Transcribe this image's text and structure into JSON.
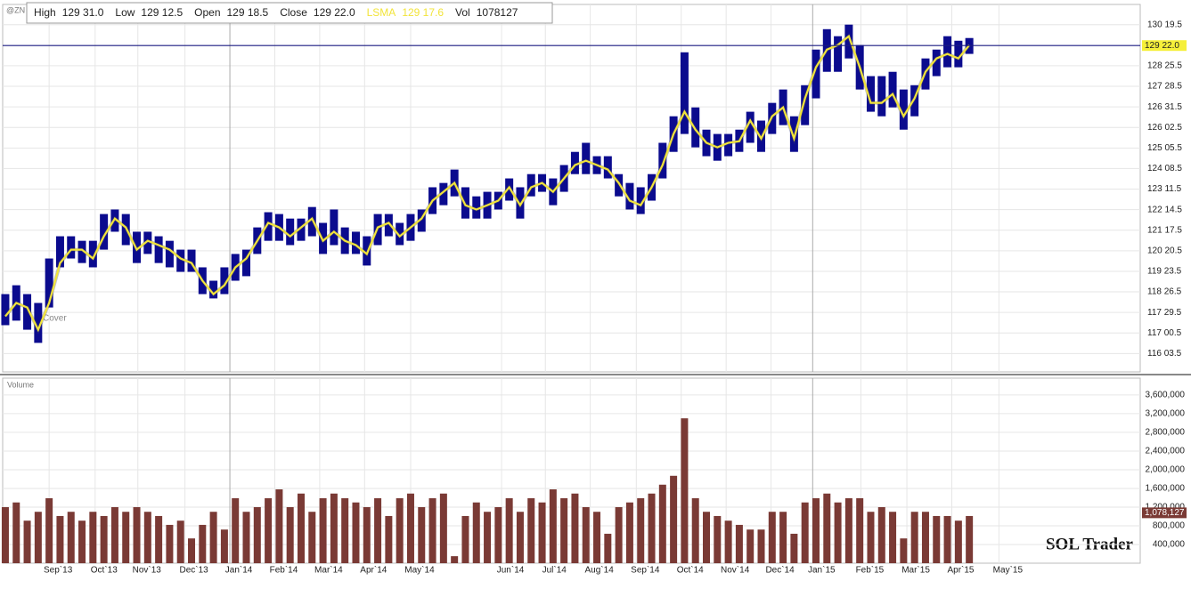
{
  "chart_data": {
    "type": "ohlc",
    "symbol": "@ZN",
    "header": [
      {
        "name": "High",
        "value": "129 31.0"
      },
      {
        "name": "Low",
        "value": "129 12.5"
      },
      {
        "name": "Open",
        "value": "129 18.5"
      },
      {
        "name": "Close",
        "value": "129 22.0"
      },
      {
        "name": "LSMA",
        "value": "129 17.6"
      },
      {
        "name": "Vol",
        "value": "1078127"
      }
    ],
    "xlim": [
      -0.24,
      103.6
    ],
    "xticks": [
      {
        "value": 4,
        "label": "Sep`13"
      },
      {
        "value": 8.2,
        "label": "Oct`13"
      },
      {
        "value": 12.1,
        "label": "Nov`13"
      },
      {
        "value": 16.4,
        "label": "Dec`13"
      },
      {
        "value": 20.5,
        "label": "Jan`14"
      },
      {
        "value": 24.6,
        "label": "Feb`14"
      },
      {
        "value": 28.7,
        "label": "Mar`14"
      },
      {
        "value": 32.8,
        "label": "Apr`14"
      },
      {
        "value": 37,
        "label": "May`14"
      },
      {
        "value": 45.3,
        "label": "Jun`14"
      },
      {
        "value": 49.3,
        "label": "Jul`14"
      },
      {
        "value": 53.4,
        "label": "Aug`14"
      },
      {
        "value": 57.6,
        "label": "Sep`14"
      },
      {
        "value": 61.7,
        "label": "Oct`14"
      },
      {
        "value": 65.8,
        "label": "Nov`14"
      },
      {
        "value": 69.9,
        "label": "Dec`14"
      },
      {
        "value": 73.7,
        "label": "Jan`15"
      },
      {
        "value": 78.1,
        "label": "Feb`15"
      },
      {
        "value": 82.3,
        "label": "Mar`15"
      },
      {
        "value": 86.4,
        "label": "Apr`15"
      },
      {
        "value": 90.7,
        "label": "May`15"
      }
    ],
    "ylim": [
      115.3,
      131.5
    ],
    "yticks": [
      {
        "value": 116.109375,
        "label": "116 03.5"
      },
      {
        "value": 117.015625,
        "label": "117 00.5"
      },
      {
        "value": 117.921875,
        "label": "117 29.5"
      },
      {
        "value": 118.828125,
        "label": "118 26.5"
      },
      {
        "value": 119.734375,
        "label": "119 23.5"
      },
      {
        "value": 120.640625,
        "label": "120 20.5"
      },
      {
        "value": 121.546875,
        "label": "121 17.5"
      },
      {
        "value": 122.453125,
        "label": "122 14.5"
      },
      {
        "value": 123.359375,
        "label": "123 11.5"
      },
      {
        "value": 124.265625,
        "label": "124 08.5"
      },
      {
        "value": 125.171875,
        "label": "125 05.5"
      },
      {
        "value": 126.078125,
        "label": "126 02.5"
      },
      {
        "value": 126.984375,
        "label": "126 31.5"
      },
      {
        "value": 127.890625,
        "label": "127 28.5"
      },
      {
        "value": 128.796875,
        "label": "128 25.5"
      },
      {
        "value": 130.609375,
        "label": "130 19.5"
      }
    ],
    "grid": true,
    "last_price": {
      "value": 129.6875,
      "label": "129 22.0"
    },
    "series": [
      {
        "color": "#0b0b8e",
        "high": [
          118.73,
          119.12,
          118.73,
          118.34,
          120.3,
          121.28,
          121.28,
          121.08,
          121.08,
          122.26,
          122.46,
          122.26,
          121.48,
          121.48,
          121.28,
          121.08,
          120.69,
          120.69,
          119.91,
          119.32,
          119.91,
          120.5,
          120.69,
          121.67,
          122.34,
          122.26,
          122.06,
          122.06,
          122.57,
          121.87,
          122.46,
          121.67,
          121.48,
          121.28,
          122.26,
          122.26,
          121.87,
          122.26,
          122.46,
          123.44,
          123.63,
          124.22,
          123.44,
          123.04,
          123.24,
          123.24,
          123.83,
          123.44,
          124.02,
          124.02,
          123.83,
          124.42,
          125.0,
          125.4,
          124.81,
          124.81,
          124.02,
          123.63,
          123.44,
          124.02,
          125.4,
          126.57,
          129.39,
          126.96,
          125.98,
          125.79,
          125.79,
          125.98,
          126.77,
          126.38,
          127.16,
          127.75,
          126.57,
          127.94,
          129.51,
          130.41,
          130.1,
          130.61,
          129.71,
          128.34,
          128.34,
          128.53,
          127.75,
          127.94,
          129.12,
          129.51,
          130.1,
          129.9,
          130.02
        ],
        "low": [
          117.36,
          117.56,
          117.16,
          116.58,
          118.14,
          119.91,
          120.3,
          120.1,
          119.91,
          120.69,
          121.48,
          120.89,
          120.1,
          120.5,
          120.1,
          119.91,
          119.71,
          119.71,
          118.73,
          118.54,
          118.73,
          119.32,
          119.52,
          120.5,
          121.08,
          121.08,
          120.89,
          121.08,
          121.28,
          120.5,
          120.89,
          120.5,
          120.5,
          119.99,
          120.89,
          121.28,
          120.89,
          121.08,
          121.48,
          122.26,
          122.65,
          123.04,
          122.06,
          122.06,
          122.06,
          122.46,
          122.85,
          122.06,
          123.04,
          123.24,
          122.65,
          123.24,
          124.02,
          124.02,
          124.02,
          123.83,
          123.04,
          122.46,
          122.26,
          122.85,
          123.83,
          125.0,
          125.79,
          125.2,
          124.81,
          124.61,
          124.81,
          125.0,
          125.4,
          125.0,
          125.79,
          126.18,
          125.0,
          126.18,
          127.36,
          128.53,
          128.53,
          129.12,
          127.75,
          126.77,
          126.57,
          126.96,
          125.98,
          126.57,
          127.75,
          128.34,
          128.73,
          128.73,
          129.32
        ]
      },
      {
        "color": "#f2e43a",
        "values": [
          117.75,
          118.34,
          118.14,
          117.16,
          118.34,
          120.1,
          120.69,
          120.69,
          120.3,
          121.28,
          122.06,
          121.67,
          120.69,
          121.08,
          120.89,
          120.69,
          120.3,
          120.1,
          119.32,
          118.73,
          119.12,
          119.91,
          120.3,
          121.08,
          121.87,
          121.67,
          121.28,
          121.67,
          122.06,
          121.08,
          121.48,
          121.08,
          120.89,
          120.5,
          121.67,
          121.87,
          121.28,
          121.67,
          122.06,
          122.85,
          123.24,
          123.63,
          122.65,
          122.46,
          122.65,
          122.85,
          123.44,
          122.65,
          123.44,
          123.63,
          123.24,
          123.83,
          124.42,
          124.61,
          124.42,
          124.22,
          123.63,
          122.85,
          122.65,
          123.44,
          124.42,
          125.79,
          126.77,
          125.98,
          125.4,
          125.2,
          125.4,
          125.47,
          126.38,
          125.59,
          126.57,
          126.96,
          125.59,
          127.36,
          128.73,
          129.51,
          129.71,
          130.1,
          128.73,
          127.16,
          127.16,
          127.55,
          126.57,
          127.36,
          128.53,
          129.12,
          129.32,
          129.12,
          129.71
        ]
      }
    ],
    "annotation": "Cover",
    "volume": {
      "title": "Volume",
      "color": "#7a3a35",
      "values": [
        1200000,
        1300000,
        910000,
        1100000,
        1390000,
        1010000,
        1100000,
        910000,
        1100000,
        1010000,
        1200000,
        1100000,
        1200000,
        1100000,
        1010000,
        820000,
        910000,
        530000,
        820000,
        1100000,
        720000,
        1390000,
        1100000,
        1200000,
        1390000,
        1580000,
        1200000,
        1490000,
        1100000,
        1390000,
        1490000,
        1390000,
        1300000,
        1200000,
        1390000,
        1010000,
        1390000,
        1490000,
        1200000,
        1390000,
        1490000,
        150000,
        1010000,
        1300000,
        1100000,
        1200000,
        1390000,
        1100000,
        1390000,
        1300000,
        1580000,
        1390000,
        1490000,
        1200000,
        1100000,
        630000,
        1200000,
        1300000,
        1390000,
        1490000,
        1680000,
        1870000,
        3100000,
        1390000,
        1100000,
        1010000,
        910000,
        820000,
        720000,
        720000,
        1100000,
        1100000,
        630000,
        1300000,
        1390000,
        1490000,
        1300000,
        1390000,
        1390000,
        1100000,
        1200000,
        1100000,
        530000,
        1100000,
        1100000,
        1010000,
        1010000,
        910000,
        1010000
      ],
      "ylim": [
        0,
        3960000
      ],
      "yticks": [
        {
          "value": 400000,
          "label": "400,000"
        },
        {
          "value": 800000,
          "label": "800,000"
        },
        {
          "value": 1200000,
          "label": "1,200,000"
        },
        {
          "value": 1600000,
          "label": "1,600,000"
        },
        {
          "value": 2000000,
          "label": "2,000,000"
        },
        {
          "value": 2400000,
          "label": "2,400,000"
        },
        {
          "value": 2800000,
          "label": "2,800,000"
        },
        {
          "value": 3200000,
          "label": "3,200,000"
        },
        {
          "value": 3600000,
          "label": "3,600,000"
        }
      ],
      "last": {
        "value": 1078127,
        "label": "1,078,127"
      }
    },
    "watermark": "SOL Trader"
  }
}
